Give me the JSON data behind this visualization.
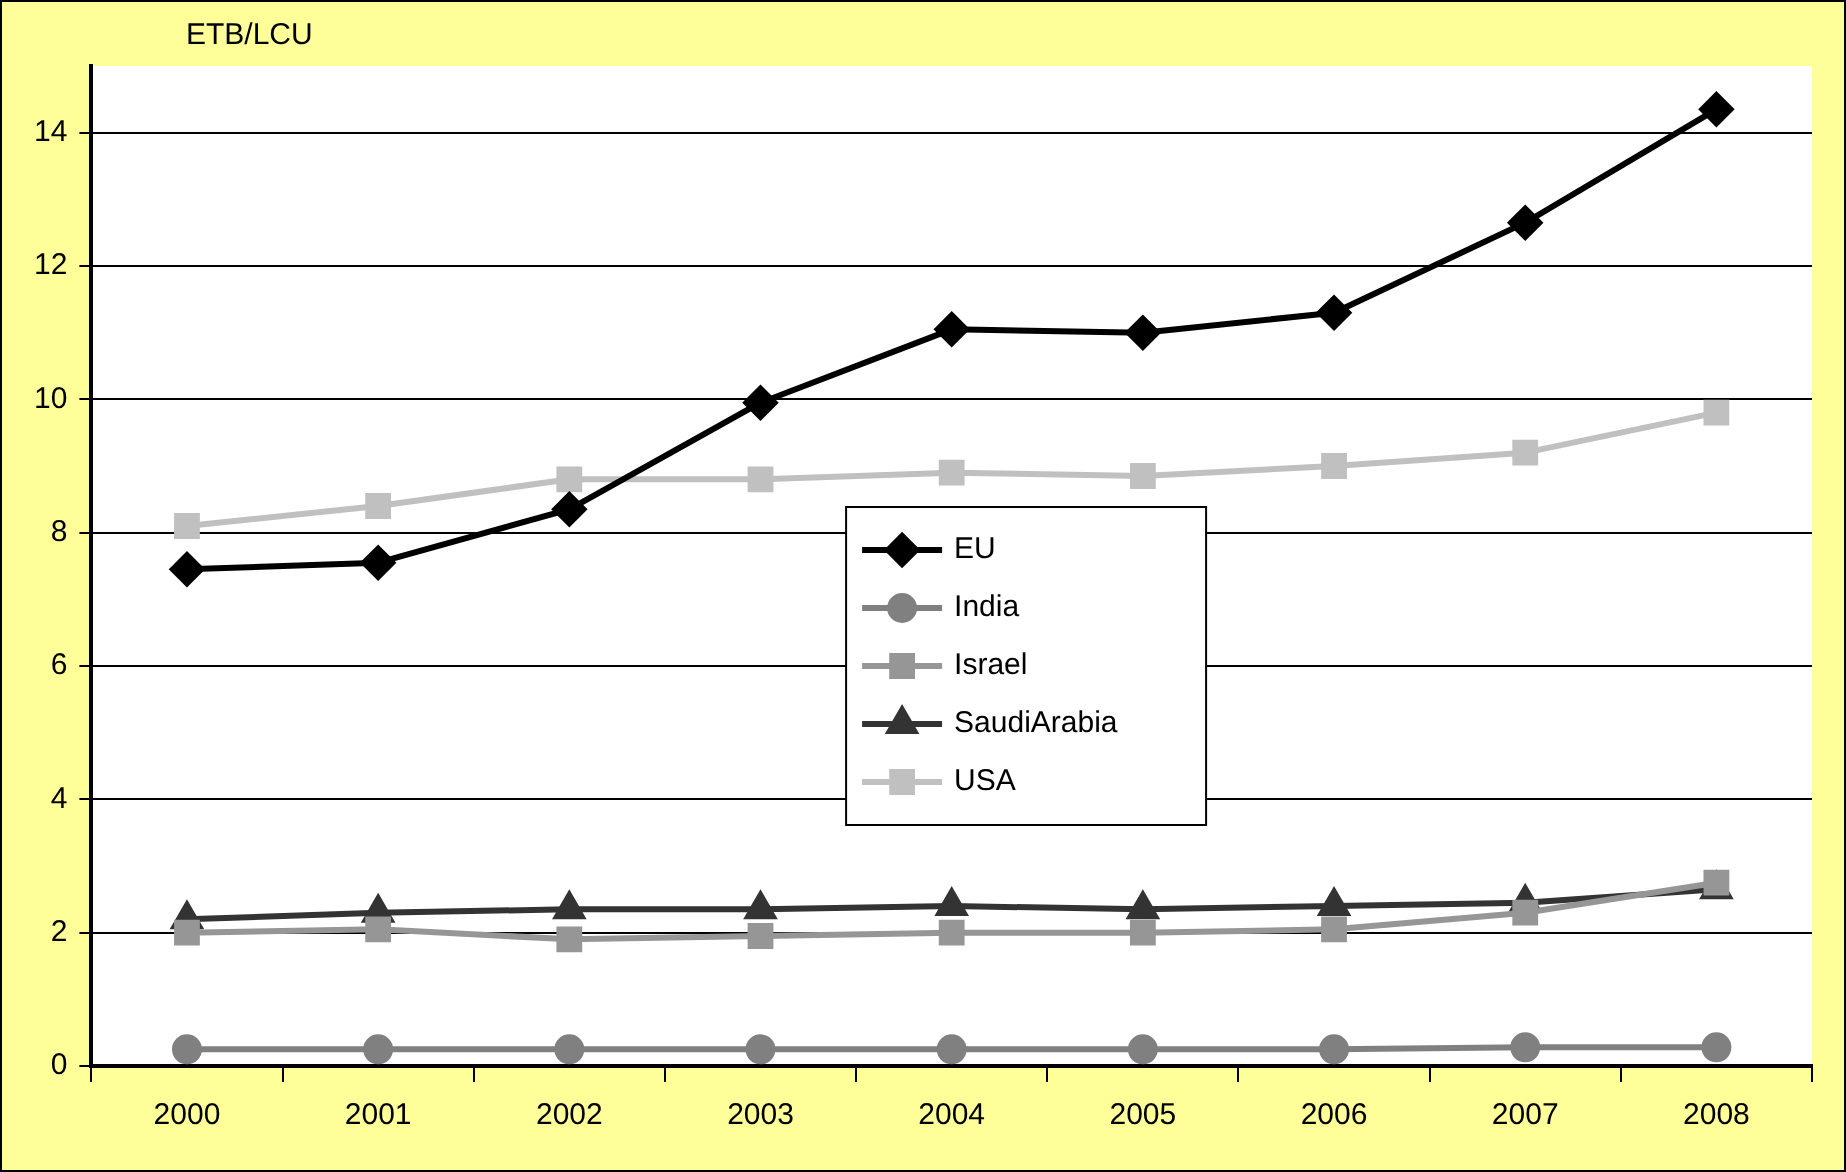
{
  "chart_data": {
    "type": "line",
    "ylabel": "ETB/LCU",
    "categories": [
      "2000",
      "2001",
      "2002",
      "2003",
      "2004",
      "2005",
      "2006",
      "2007",
      "2008"
    ],
    "series": [
      {
        "name": "EU",
        "color": "#000000",
        "marker": "diamond",
        "values": [
          7.45,
          7.55,
          8.35,
          9.95,
          11.05,
          11.0,
          11.3,
          12.65,
          14.35
        ]
      },
      {
        "name": "India",
        "color": "#808080",
        "marker": "circle",
        "values": [
          0.25,
          0.25,
          0.25,
          0.25,
          0.25,
          0.25,
          0.25,
          0.28,
          0.28
        ]
      },
      {
        "name": "Israel",
        "color": "#969696",
        "marker": "square",
        "values": [
          2.0,
          2.05,
          1.9,
          1.95,
          2.0,
          2.0,
          2.05,
          2.3,
          2.75
        ]
      },
      {
        "name": "SaudiArabia",
        "color": "#333333",
        "marker": "triangle",
        "values": [
          2.2,
          2.3,
          2.35,
          2.35,
          2.4,
          2.35,
          2.4,
          2.45,
          2.65
        ]
      },
      {
        "name": "USA",
        "color": "#c0c0c0",
        "marker": "square",
        "values": [
          8.1,
          8.4,
          8.8,
          8.8,
          8.9,
          8.85,
          9.0,
          9.2,
          9.8
        ]
      }
    ],
    "ylim": [
      0,
      15
    ],
    "yticks": [
      0,
      2,
      4,
      6,
      8,
      10,
      12,
      14
    ],
    "grid": "y",
    "legend": "center",
    "line_style": "solid"
  }
}
